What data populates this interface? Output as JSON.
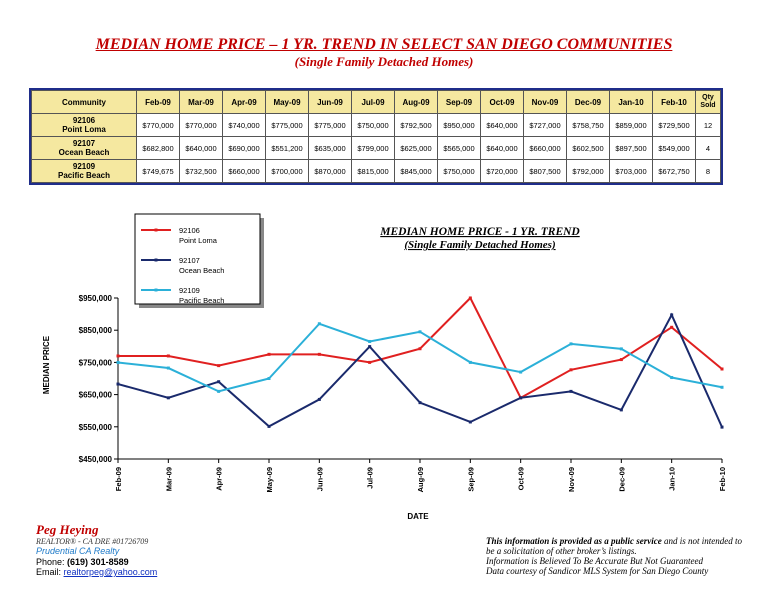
{
  "header": {
    "title": "MEDIAN HOME PRICE – 1 YR. TREND IN SELECT SAN DIEGO COMMUNITIES",
    "subtitle": "(Single Family Detached Homes)"
  },
  "table": {
    "headers": [
      "Community",
      "Feb-09",
      "Mar-09",
      "Apr-09",
      "May-09",
      "Jun-09",
      "Jul-09",
      "Aug-09",
      "Sep-09",
      "Oct-09",
      "Nov-09",
      "Dec-09",
      "Jan-10",
      "Feb-10",
      "Qty Sold"
    ],
    "rows": [
      {
        "zip": "92106",
        "area": "Point Loma",
        "values": [
          "$770,000",
          "$770,000",
          "$740,000",
          "$775,000",
          "$775,000",
          "$750,000",
          "$792,500",
          "$950,000",
          "$640,000",
          "$727,000",
          "$758,750",
          "$859,000",
          "$729,500"
        ],
        "qty": "12"
      },
      {
        "zip": "92107",
        "area": "Ocean Beach",
        "values": [
          "$682,800",
          "$640,000",
          "$690,000",
          "$551,200",
          "$635,000",
          "$799,000",
          "$625,000",
          "$565,000",
          "$640,000",
          "$660,000",
          "$602,500",
          "$897,500",
          "$549,000"
        ],
        "qty": "4"
      },
      {
        "zip": "92109",
        "area": "Pacific Beach",
        "values": [
          "$749,675",
          "$732,500",
          "$660,000",
          "$700,000",
          "$870,000",
          "$815,000",
          "$845,000",
          "$750,000",
          "$720,000",
          "$807,500",
          "$792,000",
          "$703,000",
          "$672,750"
        ],
        "qty": "8"
      }
    ]
  },
  "chart_data": {
    "type": "line",
    "title": "MEDIAN HOME PRICE - 1 YR. TREND",
    "subtitle": "(Single Family Detached Homes)",
    "xlabel": "DATE",
    "ylabel": "MEDIAN PRICE",
    "ylim": [
      450000,
      950000
    ],
    "yticks": [
      450000,
      550000,
      650000,
      750000,
      850000,
      950000
    ],
    "ytick_labels": [
      "$450,000",
      "$550,000",
      "$650,000",
      "$750,000",
      "$850,000",
      "$950,000"
    ],
    "categories": [
      "Feb-09",
      "Mar-09",
      "Apr-09",
      "May-09",
      "Jun-09",
      "Jul-09",
      "Aug-09",
      "Sep-09",
      "Oct-09",
      "Nov-09",
      "Dec-09",
      "Jan-10",
      "Feb-10"
    ],
    "legend_position": "top-left",
    "series": [
      {
        "zip": "92106",
        "name": "Point Loma",
        "color": "#e02020",
        "values": [
          770000,
          770000,
          740000,
          775000,
          775000,
          750000,
          792500,
          950000,
          640000,
          727000,
          758750,
          859000,
          729500
        ]
      },
      {
        "zip": "92107",
        "name": "Ocean Beach",
        "color": "#1a2a6c",
        "values": [
          682800,
          640000,
          690000,
          551200,
          635000,
          799000,
          625000,
          565000,
          640000,
          660000,
          602500,
          897500,
          549000
        ]
      },
      {
        "zip": "92109",
        "name": "Pacific Beach",
        "color": "#2bb0d8",
        "values": [
          749675,
          732500,
          660000,
          700000,
          870000,
          815000,
          845000,
          750000,
          720000,
          807500,
          792000,
          703000,
          672750
        ]
      }
    ]
  },
  "footer": {
    "name": "Peg Heying",
    "license": "REALTOR® - CA DRE #01726709",
    "company": "Prudential CA Realty",
    "phone_label": "Phone:",
    "phone": "(619) 301-8589",
    "email_label": "Email:",
    "email": "realtorpeg@yahoo.com",
    "disclaimer_bold": "This information is provided as a public service",
    "disclaimer_rest": "and is not intended to be a solicitation of other broker’s listings.",
    "disclaimer_line3": "Information is Believed To Be Accurate But Not Guaranteed",
    "disclaimer_line4": "Data courtesy of Sandicor MLS System for San Diego County"
  }
}
